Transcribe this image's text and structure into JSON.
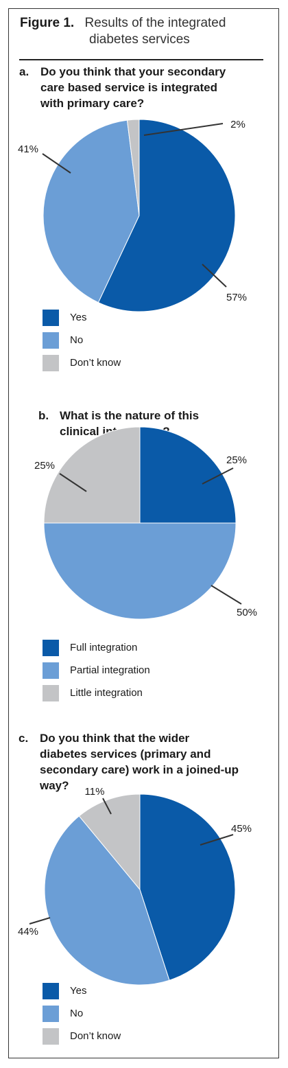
{
  "figure": {
    "label": "Figure 1",
    "dot": ".",
    "caption_line1": "Results of the integrated",
    "caption_line2": "diabetes services"
  },
  "colors": {
    "dark_blue": "#0a5aa8",
    "light_blue": "#6b9ed6",
    "grey": "#c3c4c6",
    "leader_line": "#333333",
    "slice_border": "#ffffff"
  },
  "panels": [
    {
      "letter": "a.",
      "question_lines": [
        "Do you think that your secondary",
        "care based service is integrated",
        "with primary care?"
      ],
      "legend": [
        {
          "label": "Yes",
          "color_key": "dark_blue"
        },
        {
          "label": "No",
          "color_key": "light_blue"
        },
        {
          "label": "Don’t know",
          "color_key": "grey"
        }
      ]
    },
    {
      "letter": "b.",
      "question_lines": [
        "What is the nature of this",
        "clinical integration?"
      ],
      "legend": [
        {
          "label": "Full integration",
          "color_key": "dark_blue"
        },
        {
          "label": "Partial integration",
          "color_key": "light_blue"
        },
        {
          "label": "Little integration",
          "color_key": "grey"
        }
      ]
    },
    {
      "letter": "c.",
      "question_lines": [
        "Do you think that the wider",
        "diabetes services (primary and",
        "secondary care) work in a joined-up",
        "way?"
      ],
      "legend": [
        {
          "label": "Yes",
          "color_key": "dark_blue"
        },
        {
          "label": "No",
          "color_key": "light_blue"
        },
        {
          "label": "Don’t know",
          "color_key": "grey"
        }
      ]
    }
  ],
  "chart_data": [
    {
      "type": "pie",
      "title": "Do you think that your secondary care based service is integrated with primary care?",
      "categories": [
        "Yes",
        "No",
        "Don’t know"
      ],
      "values": [
        57,
        41,
        2
      ],
      "labels": [
        "57%",
        "41%",
        "2%"
      ],
      "legend_position": "bottom-left"
    },
    {
      "type": "pie",
      "title": "What is the nature of this clinical integration?",
      "categories": [
        "Full integration",
        "Partial integration",
        "Little integration"
      ],
      "values": [
        25,
        50,
        25
      ],
      "labels": [
        "25%",
        "50%",
        "25%"
      ],
      "legend_position": "bottom-left"
    },
    {
      "type": "pie",
      "title": "Do you think that the wider diabetes services (primary and secondary care) work in a joined-up way?",
      "categories": [
        "Yes",
        "No",
        "Don’t know"
      ],
      "values": [
        45,
        44,
        11
      ],
      "labels": [
        "45%",
        "44%",
        "11%"
      ],
      "legend_position": "bottom-left"
    }
  ]
}
